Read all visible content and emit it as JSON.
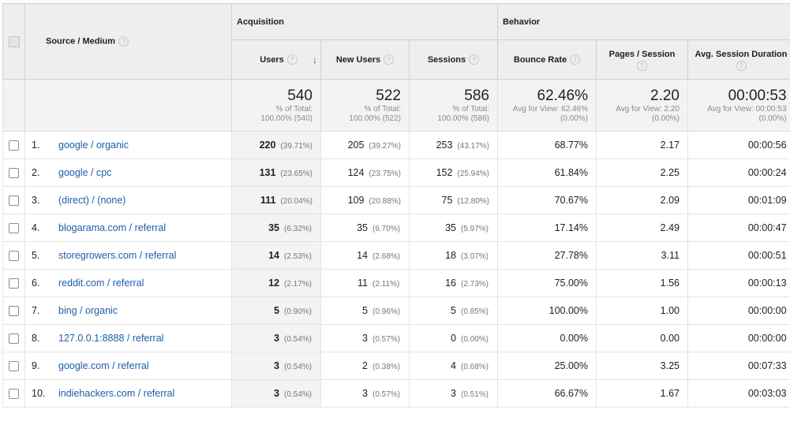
{
  "header": {
    "dimension_label": "Source / Medium",
    "group_acquisition": "Acquisition",
    "group_behavior": "Behavior",
    "help_glyph": "?",
    "sort_glyph": "↓",
    "columns": {
      "users": "Users",
      "new_users": "New Users",
      "sessions": "Sessions",
      "bounce_rate": "Bounce Rate",
      "pages_session": "Pages / Session",
      "avg_duration": "Avg. Session Duration"
    }
  },
  "totals": {
    "users": {
      "value": "540",
      "line1": "% of Total:",
      "line2": "100.00% (540)"
    },
    "new_users": {
      "value": "522",
      "line1": "% of Total:",
      "line2": "100.00% (522)"
    },
    "sessions": {
      "value": "586",
      "line1": "% of Total:",
      "line2": "100.00% (586)"
    },
    "bounce_rate": {
      "value": "62.46%",
      "line1": "Avg for View: 62.46%",
      "line2": "(0.00%)"
    },
    "pages_session": {
      "value": "2.20",
      "line1": "Avg for View: 2.20",
      "line2": "(0.00%)"
    },
    "avg_duration": {
      "value": "00:00:53",
      "line1": "Avg for View: 00:00:53",
      "line2": "(0.00%)"
    }
  },
  "rows": [
    {
      "num": "1.",
      "source": "google / organic",
      "users": "220",
      "users_pct": "(39.71%)",
      "new_users": "205",
      "new_users_pct": "(39.27%)",
      "sessions": "253",
      "sessions_pct": "(43.17%)",
      "bounce": "68.77%",
      "pages": "2.17",
      "duration": "00:00:56"
    },
    {
      "num": "2.",
      "source": "google / cpc",
      "users": "131",
      "users_pct": "(23.65%)",
      "new_users": "124",
      "new_users_pct": "(23.75%)",
      "sessions": "152",
      "sessions_pct": "(25.94%)",
      "bounce": "61.84%",
      "pages": "2.25",
      "duration": "00:00:24"
    },
    {
      "num": "3.",
      "source": "(direct) / (none)",
      "users": "111",
      "users_pct": "(20.04%)",
      "new_users": "109",
      "new_users_pct": "(20.88%)",
      "sessions": "75",
      "sessions_pct": "(12.80%)",
      "bounce": "70.67%",
      "pages": "2.09",
      "duration": "00:01:09"
    },
    {
      "num": "4.",
      "source": "blogarama.com / referral",
      "users": "35",
      "users_pct": "(6.32%)",
      "new_users": "35",
      "new_users_pct": "(6.70%)",
      "sessions": "35",
      "sessions_pct": "(5.97%)",
      "bounce": "17.14%",
      "pages": "2.49",
      "duration": "00:00:47"
    },
    {
      "num": "5.",
      "source": "storegrowers.com / referral",
      "users": "14",
      "users_pct": "(2.53%)",
      "new_users": "14",
      "new_users_pct": "(2.68%)",
      "sessions": "18",
      "sessions_pct": "(3.07%)",
      "bounce": "27.78%",
      "pages": "3.11",
      "duration": "00:00:51"
    },
    {
      "num": "6.",
      "source": "reddit.com / referral",
      "users": "12",
      "users_pct": "(2.17%)",
      "new_users": "11",
      "new_users_pct": "(2.11%)",
      "sessions": "16",
      "sessions_pct": "(2.73%)",
      "bounce": "75.00%",
      "pages": "1.56",
      "duration": "00:00:13"
    },
    {
      "num": "7.",
      "source": "bing / organic",
      "users": "5",
      "users_pct": "(0.90%)",
      "new_users": "5",
      "new_users_pct": "(0.96%)",
      "sessions": "5",
      "sessions_pct": "(0.85%)",
      "bounce": "100.00%",
      "pages": "1.00",
      "duration": "00:00:00"
    },
    {
      "num": "8.",
      "source": "127.0.0.1:8888 / referral",
      "users": "3",
      "users_pct": "(0.54%)",
      "new_users": "3",
      "new_users_pct": "(0.57%)",
      "sessions": "0",
      "sessions_pct": "(0.00%)",
      "bounce": "0.00%",
      "pages": "0.00",
      "duration": "00:00:00"
    },
    {
      "num": "9.",
      "source": "google.com / referral",
      "users": "3",
      "users_pct": "(0.54%)",
      "new_users": "2",
      "new_users_pct": "(0.38%)",
      "sessions": "4",
      "sessions_pct": "(0.68%)",
      "bounce": "25.00%",
      "pages": "3.25",
      "duration": "00:07:33"
    },
    {
      "num": "10.",
      "source": "indiehackers.com / referral",
      "users": "3",
      "users_pct": "(0.54%)",
      "new_users": "3",
      "new_users_pct": "(0.57%)",
      "sessions": "3",
      "sessions_pct": "(0.51%)",
      "bounce": "66.67%",
      "pages": "1.67",
      "duration": "00:03:03"
    }
  ]
}
